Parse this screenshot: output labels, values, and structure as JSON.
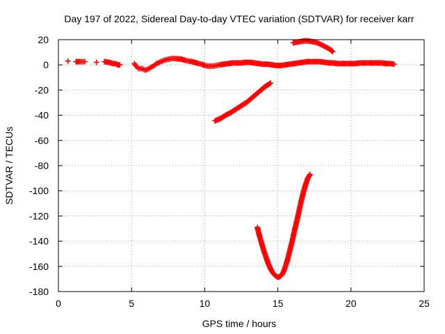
{
  "chart_data": {
    "type": "scatter",
    "title": "Day 197 of 2022, Sidereal Day-to-day VTEC variation (SDTVAR) for receiver karr",
    "xlabel": "GPS time / hours",
    "ylabel": "SDTVAR / TECUs",
    "xlim": [
      0,
      25
    ],
    "ylim": [
      -180,
      20
    ],
    "xticks": [
      0,
      5,
      10,
      15,
      20,
      25
    ],
    "yticks": [
      20,
      0,
      -20,
      -40,
      -60,
      -80,
      -100,
      -120,
      -140,
      -160,
      -180
    ],
    "xtick_labels": [
      "0",
      "5",
      "10",
      "15",
      "20",
      "25"
    ],
    "ytick_labels": [
      "20",
      "0",
      "-20",
      "-40",
      "-60",
      "-80",
      "-100",
      "-120",
      "-140",
      "-160",
      "-180"
    ],
    "grid": true,
    "marker": "plus",
    "color": "#ff0000",
    "series": [
      {
        "x": [
          0.65,
          1.2,
          1.35,
          1.5,
          1.7,
          1.8,
          2.6,
          3.15,
          3.45,
          3.6,
          3.75,
          3.9,
          4.05,
          4.2,
          5.2,
          5.3,
          5.4,
          5.5,
          5.6,
          5.7,
          5.8,
          5.9,
          6.0,
          6.1,
          6.2,
          6.3,
          6.4,
          6.5,
          6.6,
          6.7,
          6.8,
          6.9,
          7.0,
          7.1,
          7.2,
          7.3,
          7.4,
          7.5,
          7.6,
          7.7,
          7.8,
          7.9,
          8.0,
          8.4,
          8.55,
          8.7,
          8.9,
          9.15,
          9.6,
          9.8,
          10.0,
          10.2,
          10.4,
          10.6,
          10.8,
          11.0,
          11.3,
          11.6,
          11.9,
          12.2,
          12.5,
          12.8,
          13.1,
          13.4,
          13.7,
          14.0,
          14.3,
          14.6,
          14.9,
          15.2,
          15.5,
          15.8,
          16.1,
          16.4,
          16.7,
          17.0,
          17.3,
          17.6,
          17.9,
          18.2,
          18.5,
          18.8,
          19.1,
          19.4,
          19.7,
          20.0,
          20.3,
          20.6,
          20.9,
          21.2,
          21.5,
          21.8,
          22.1,
          22.4,
          22.7,
          22.95
        ],
        "y": [
          3,
          2.5,
          2.5,
          2.5,
          2.5,
          2.5,
          2,
          2.5,
          2,
          1.5,
          1,
          1,
          0,
          0,
          1,
          -1,
          -2,
          -3,
          -3,
          -3,
          -3.5,
          -4,
          -4,
          -3.5,
          -3,
          -2,
          -1.5,
          -1,
          0,
          1,
          1.5,
          2,
          2.5,
          3,
          3.5,
          4,
          4,
          4.5,
          4.5,
          5,
          5,
          5,
          5,
          4.5,
          4,
          3.5,
          3,
          2.5,
          1,
          0.5,
          -0.5,
          -1,
          -1,
          -1,
          -0.5,
          0,
          0.5,
          1,
          1.5,
          1.5,
          1.5,
          2,
          2,
          1.5,
          1,
          0.5,
          0.5,
          0,
          -0.5,
          -0.5,
          0,
          0.5,
          1,
          1.5,
          2,
          2.5,
          2.5,
          2.5,
          2.5,
          2,
          1.5,
          1.5,
          1,
          1,
          1,
          1,
          1,
          1.5,
          1.5,
          1.5,
          1.5,
          1.5,
          1.5,
          1,
          1,
          0.5
        ]
      },
      {
        "x": [
          16.05,
          16.3,
          16.55,
          16.8,
          17.05,
          17.3,
          17.55,
          17.8,
          18.05,
          18.3,
          18.55,
          18.75
        ],
        "y": [
          17.5,
          18,
          18.5,
          19,
          19,
          18.5,
          18,
          17,
          15.5,
          14,
          12.5,
          10.5
        ]
      },
      {
        "x": [
          10.7,
          10.9,
          11.1,
          11.3,
          11.5,
          11.7,
          11.9,
          12.1,
          12.3,
          12.5,
          12.7,
          12.9,
          13.1,
          13.3,
          13.5,
          13.7,
          13.9,
          14.1,
          14.3,
          14.5
        ],
        "y": [
          -44.5,
          -43.5,
          -42.5,
          -41,
          -39.5,
          -38.5,
          -37,
          -35.5,
          -34,
          -32.5,
          -31,
          -29.5,
          -27.5,
          -25.5,
          -23.5,
          -21.5,
          -19.5,
          -17.5,
          -16,
          -14.5
        ]
      },
      {
        "x": [
          13.6,
          13.75,
          13.9,
          14.05,
          14.2,
          14.35,
          14.5,
          14.65,
          14.8,
          14.95,
          15.1,
          15.25,
          15.4,
          15.55,
          15.7,
          15.85,
          16.0,
          16.15,
          16.3,
          16.45,
          16.6,
          16.75,
          16.9,
          17.05,
          17.2
        ],
        "y": [
          -129,
          -136,
          -142,
          -148,
          -153,
          -158,
          -162,
          -165,
          -167,
          -168.5,
          -168.5,
          -167,
          -164,
          -159,
          -153,
          -146,
          -139,
          -131,
          -124,
          -116,
          -108,
          -101,
          -95,
          -90,
          -87
        ]
      }
    ]
  }
}
